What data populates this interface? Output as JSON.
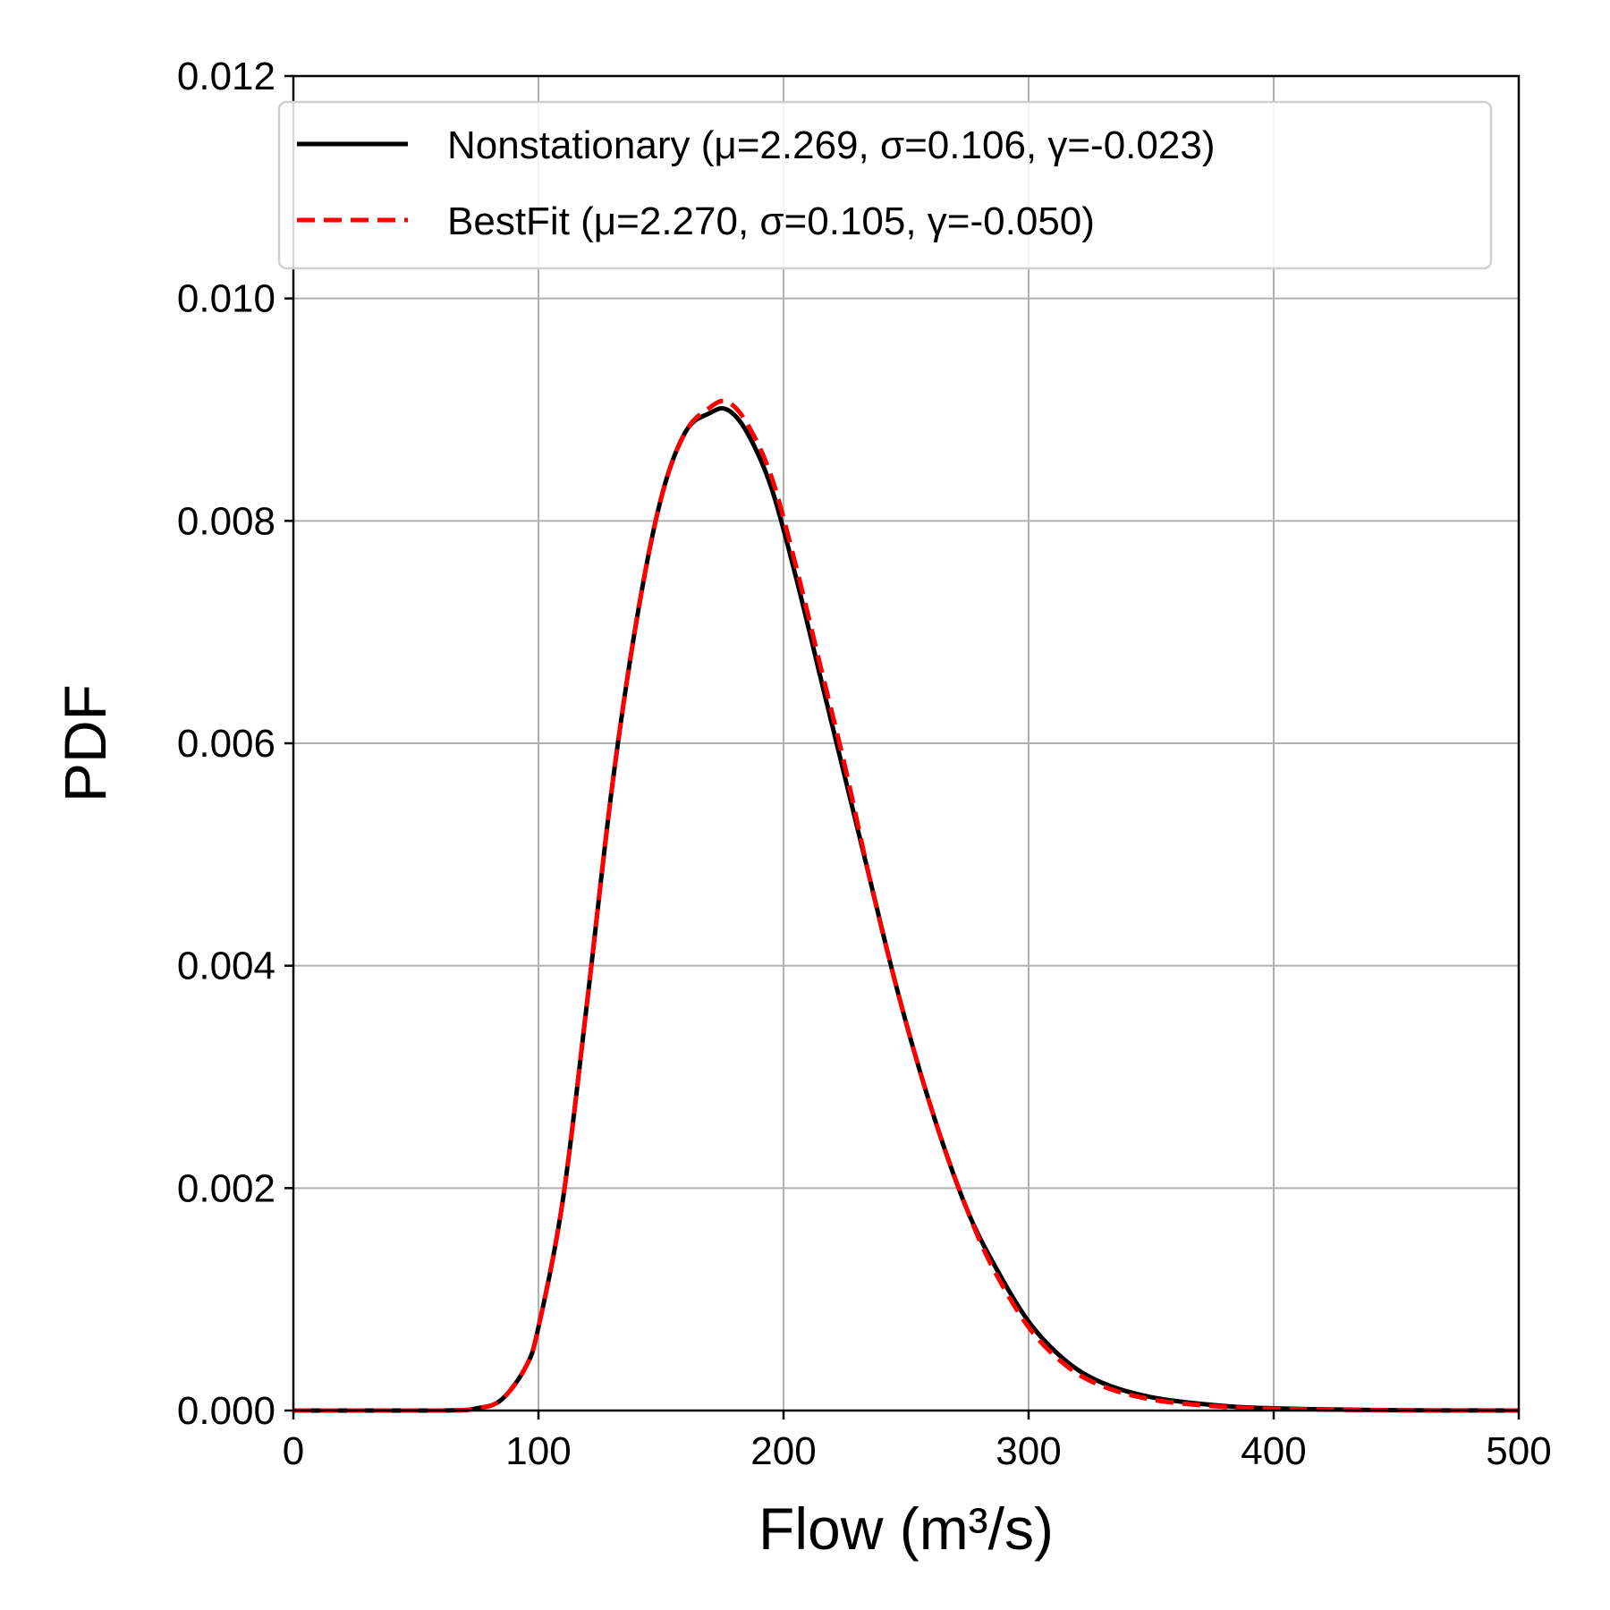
{
  "chart_data": {
    "type": "line",
    "xlabel": "Flow (m³/s)",
    "ylabel": "PDF",
    "xlim": [
      0,
      500
    ],
    "ylim": [
      0,
      0.012
    ],
    "x_ticks": [
      "0",
      "100",
      "200",
      "300",
      "400",
      "500"
    ],
    "y_ticks": [
      "0.000",
      "0.002",
      "0.004",
      "0.006",
      "0.008",
      "0.010",
      "0.012"
    ],
    "grid": true,
    "legend_position": "top-right",
    "series": [
      {
        "name": "Nonstationary (μ=2.269, σ=0.106, γ=-0.023)",
        "color": "#000000",
        "style": "solid",
        "x": [
          0,
          60,
          75,
          85,
          95,
          100,
          110,
          120,
          130,
          140,
          150,
          160,
          170,
          177,
          185,
          195,
          205,
          215,
          225,
          235,
          245,
          255,
          265,
          275,
          285,
          300,
          315,
          330,
          350,
          375,
          400,
          450,
          500
        ],
        "y": [
          0,
          0,
          2e-05,
          0.0001,
          0.0004,
          0.00075,
          0.0019,
          0.0037,
          0.0056,
          0.0071,
          0.0082,
          0.0088,
          0.00897,
          0.009,
          0.0088,
          0.0083,
          0.0075,
          0.0066,
          0.0057,
          0.0048,
          0.0039,
          0.0031,
          0.0024,
          0.0018,
          0.00135,
          0.0008,
          0.00045,
          0.00025,
          0.00012,
          5e-05,
          2e-05,
          3e-06,
          0
        ]
      },
      {
        "name": "BestFit (μ=2.270, σ=0.105, γ=-0.050)",
        "color": "#ff0000",
        "style": "dashed",
        "x": [
          0,
          60,
          75,
          85,
          95,
          100,
          110,
          120,
          130,
          140,
          150,
          160,
          170,
          177,
          185,
          195,
          205,
          215,
          225,
          235,
          245,
          255,
          265,
          275,
          285,
          300,
          315,
          330,
          350,
          375,
          400,
          450,
          500
        ],
        "y": [
          0,
          0,
          2e-05,
          0.0001,
          0.0004,
          0.00075,
          0.0019,
          0.0037,
          0.0056,
          0.0071,
          0.0082,
          0.0088,
          0.00902,
          0.00907,
          0.00888,
          0.0084,
          0.0076,
          0.0067,
          0.0058,
          0.0048,
          0.0039,
          0.0031,
          0.0024,
          0.0018,
          0.0013,
          0.00075,
          0.00041,
          0.00022,
          0.0001,
          4e-05,
          1.5e-05,
          2e-06,
          0
        ]
      }
    ]
  }
}
